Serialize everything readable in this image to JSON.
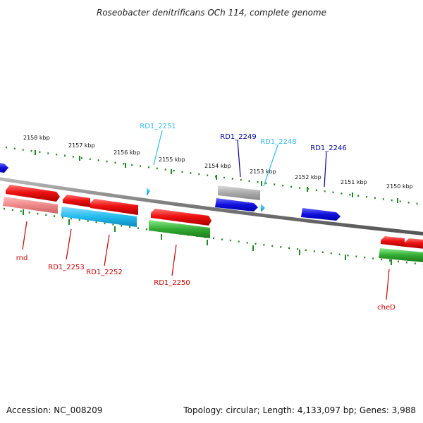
{
  "title": "Roseobacter denitrificans OCh 114, complete genome",
  "footer": {
    "accession": "Accession: NC_008209",
    "topology": "Topology: circular; Length: 4,133,097 bp; Genes: 3,988"
  },
  "kbp_labels": [
    "2158 kbp",
    "2157 kbp",
    "2156 kbp",
    "2155 kbp",
    "2154 kbp",
    "2153 kbp",
    "2152 kbp",
    "2151 kbp",
    "2150 kbp"
  ],
  "gene_labels_top": [
    {
      "name": "RD1_2251",
      "color": "#33bbee"
    },
    {
      "name": "RD1_2249",
      "color": "#000099"
    },
    {
      "name": "RD1_2248",
      "color": "#33bbee"
    },
    {
      "name": "RD1_2246",
      "color": "#000099"
    }
  ],
  "gene_labels_bottom": [
    {
      "name": "rnd",
      "color": "#cc0000"
    },
    {
      "name": "RD1_2253",
      "color": "#cc0000"
    },
    {
      "name": "RD1_2252",
      "color": "#cc0000"
    },
    {
      "name": "RD1_2250",
      "color": "#cc0000"
    },
    {
      "name": "cheD",
      "color": "#cc0000"
    }
  ],
  "colors": {
    "backbone": "#888888",
    "ticks": "#228822",
    "red": "#ee1111",
    "pink": "#ee8888",
    "cyan": "#22bbee",
    "blue": "#1111dd",
    "green": "#33aa33",
    "gray": "#aaaaaa",
    "label_red": "#cc0000",
    "label_blue": "#000099",
    "label_cyan": "#33bbee"
  }
}
